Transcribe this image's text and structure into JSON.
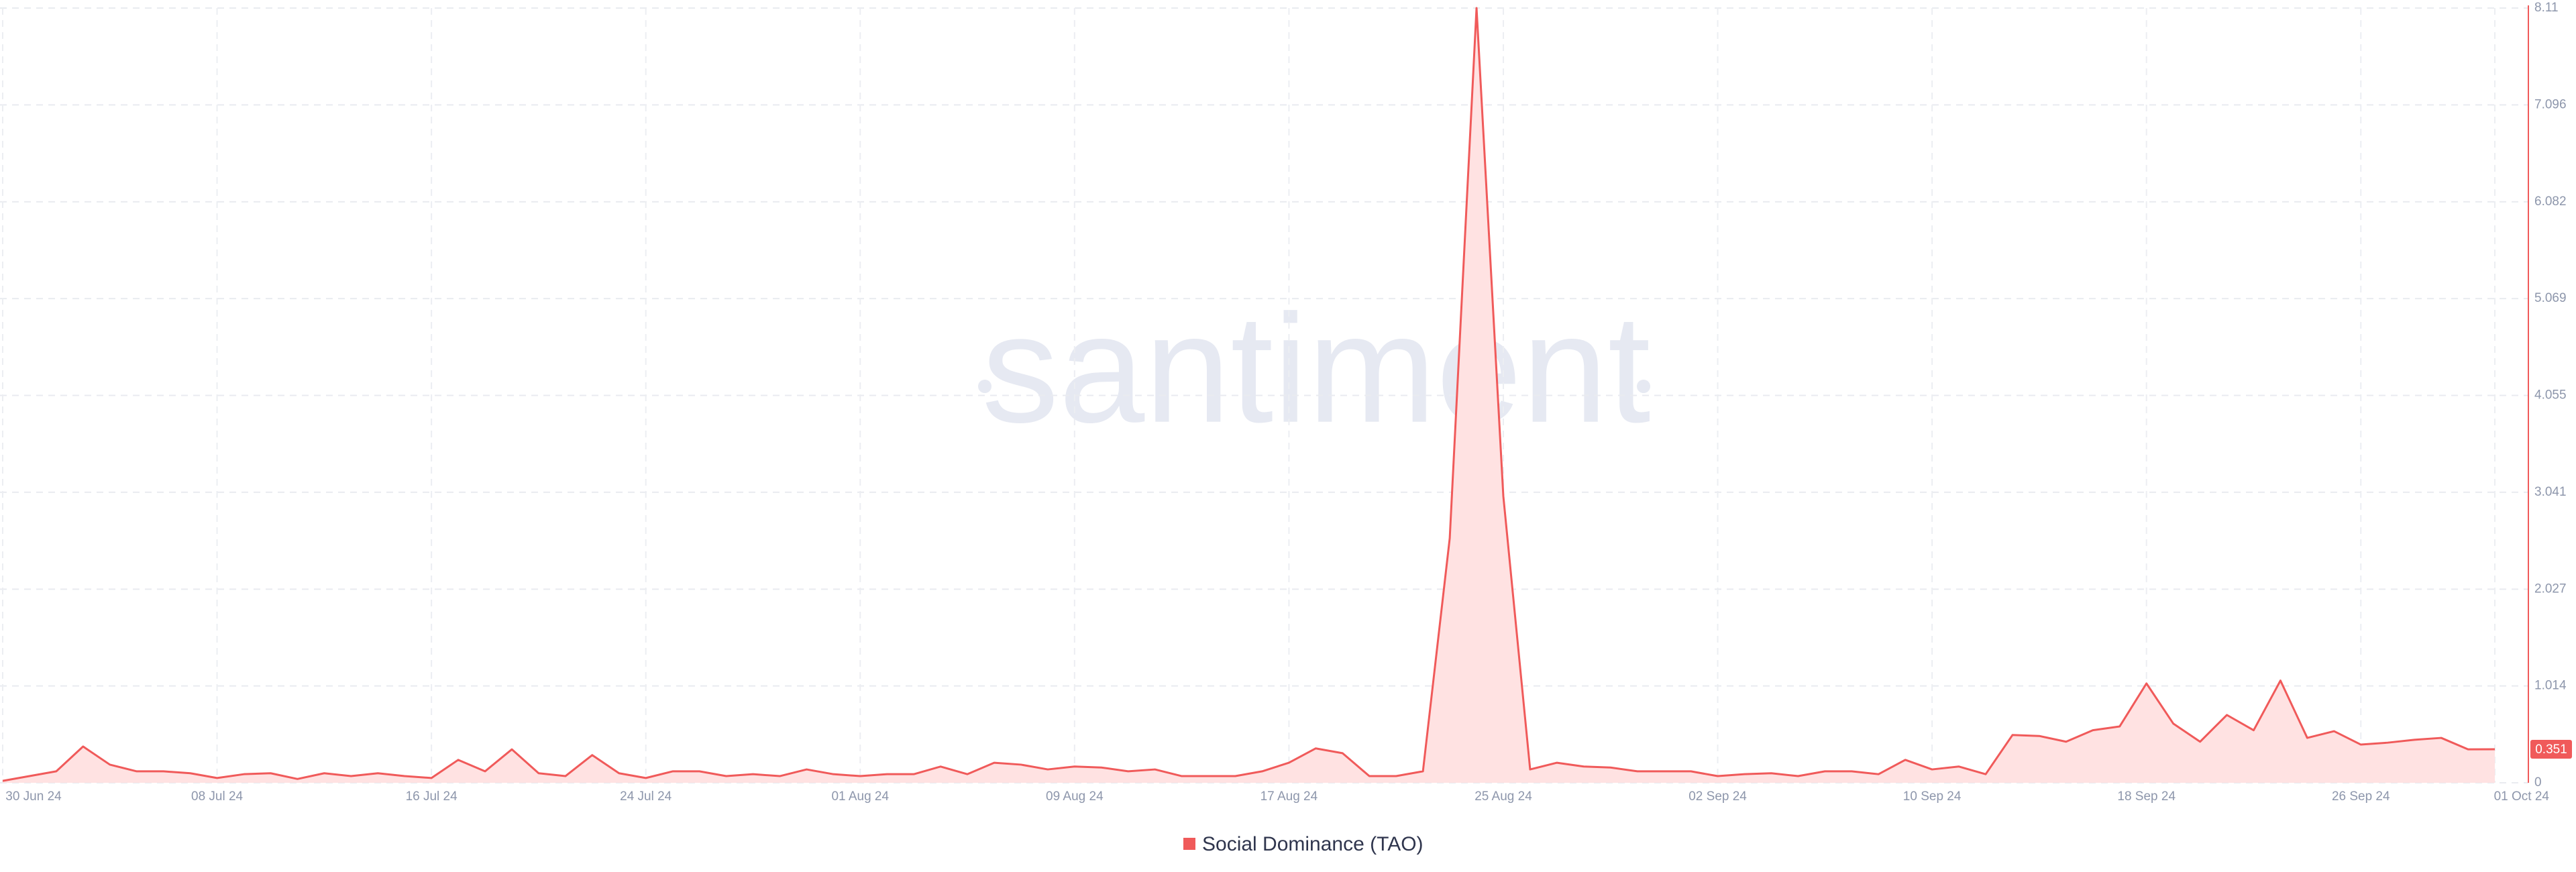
{
  "chart_data": {
    "type": "line",
    "watermark": "santiment",
    "categories": [
      "30 Jun 24",
      null,
      null,
      null,
      null,
      null,
      null,
      null,
      "08 Jul 24",
      null,
      null,
      null,
      null,
      null,
      null,
      null,
      "16 Jul 24",
      null,
      null,
      null,
      null,
      null,
      null,
      null,
      "24 Jul 24",
      null,
      null,
      null,
      null,
      null,
      null,
      null,
      "01 Aug 24",
      null,
      null,
      null,
      null,
      null,
      null,
      null,
      "09 Aug 24",
      null,
      null,
      null,
      null,
      null,
      null,
      null,
      "17 Aug 24",
      null,
      null,
      null,
      null,
      null,
      null,
      null,
      "25 Aug 24",
      null,
      null,
      null,
      null,
      null,
      null,
      null,
      "02 Sep 24",
      null,
      null,
      null,
      null,
      null,
      null,
      null,
      "10 Sep 24",
      null,
      null,
      null,
      null,
      null,
      null,
      null,
      "18 Sep 24",
      null,
      null,
      null,
      null,
      null,
      null,
      null,
      "26 Sep 24",
      null,
      null,
      null,
      null,
      "01 Oct 24"
    ],
    "series": [
      {
        "name": "Social Dominance (TAO)",
        "color": "#f05a5a",
        "fill": "#ffe2e2",
        "values": [
          0.02,
          0.07,
          0.12,
          0.38,
          0.19,
          0.12,
          0.12,
          0.1,
          0.05,
          0.09,
          0.1,
          0.04,
          0.1,
          0.07,
          0.1,
          0.07,
          0.05,
          0.24,
          0.12,
          0.35,
          0.1,
          0.07,
          0.29,
          0.1,
          0.05,
          0.12,
          0.12,
          0.07,
          0.09,
          0.07,
          0.14,
          0.09,
          0.07,
          0.09,
          0.09,
          0.17,
          0.09,
          0.21,
          0.19,
          0.14,
          0.17,
          0.16,
          0.12,
          0.14,
          0.07,
          0.07,
          0.07,
          0.12,
          0.21,
          0.36,
          0.31,
          0.07,
          0.07,
          0.12,
          2.56,
          8.11,
          3.0,
          0.14,
          0.21,
          0.17,
          0.16,
          0.12,
          0.12,
          0.12,
          0.07,
          0.09,
          0.1,
          0.07,
          0.12,
          0.12,
          0.09,
          0.24,
          0.14,
          0.17,
          0.09,
          0.5,
          0.49,
          0.43,
          0.55,
          0.59,
          1.04,
          0.62,
          0.43,
          0.71,
          0.55,
          1.07,
          0.47,
          0.54,
          0.4,
          0.42,
          0.45,
          0.47,
          0.35,
          0.351
        ]
      }
    ],
    "ylim": [
      0,
      8.11
    ],
    "yticks": [
      0,
      1.014,
      2.027,
      3.041,
      4.055,
      5.069,
      6.082,
      7.096,
      8.11
    ],
    "grid": true
  }
}
